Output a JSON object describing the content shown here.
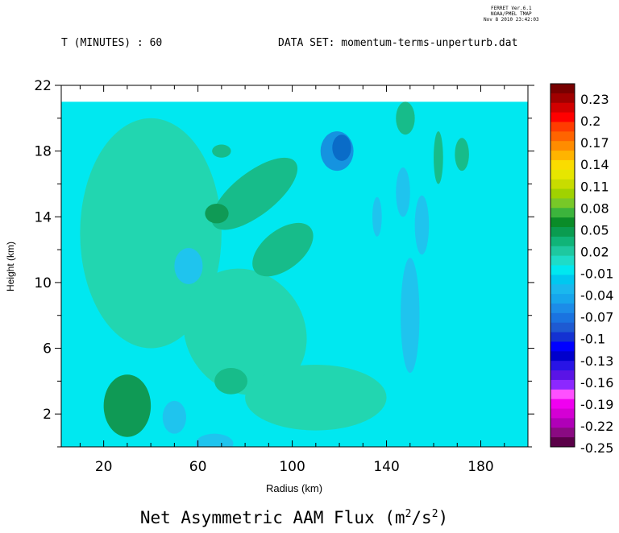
{
  "header": {
    "stamp_line1": "FERRET Ver.6.1",
    "stamp_line2": "NOAA/PMEL TMAP",
    "stamp_line3": "Nov 8 2010 23:42:03",
    "time_label": "T (MINUTES) : 60",
    "dataset_label": "DATA SET: momentum-terms-unperturb.dat"
  },
  "colors": {
    "background_field": "#00e8f0",
    "positive_weak": "#22d6b0",
    "positive_mid": "#17bc8a",
    "positive_strong": "#0f9a55",
    "negative_weak": "#1fc4ee",
    "negative_mid": "#1593e0",
    "negative_strong": "#0a6cc8"
  },
  "chart_data": {
    "type": "heatmap",
    "title": "Net Asymmetric AAM Flux (m",
    "title_units_sup1": "2",
    "title_units_mid": "/s",
    "title_units_sup2": "2",
    "title_units_close": ")",
    "xlabel": "Radius (km)",
    "ylabel": "Height (km)",
    "xlim": [
      2,
      200
    ],
    "ylim": [
      0,
      22
    ],
    "data_top": 21,
    "x_ticks": [
      20,
      60,
      100,
      140,
      180
    ],
    "y_ticks": [
      2,
      6,
      10,
      14,
      18,
      22
    ],
    "colorbar": {
      "levels": [
        -0.25,
        -0.22,
        -0.19,
        -0.16,
        -0.13,
        -0.1,
        -0.07,
        -0.04,
        -0.01,
        0.02,
        0.05,
        0.08,
        0.11,
        0.14,
        0.17,
        0.2,
        0.23
      ],
      "labels": [
        "-0.25",
        "-0.22",
        "-0.19",
        "-0.16",
        "-0.13",
        "-0.1",
        "-0.07",
        "-0.04",
        "-0.01",
        "0.02",
        "0.05",
        "0.08",
        "0.11",
        "0.14",
        "0.17",
        "0.2",
        "0.23"
      ],
      "colors": [
        "#5a0048",
        "#8a0a82",
        "#b000b8",
        "#d400d4",
        "#f000f0",
        "#ff50ff",
        "#8c28ff",
        "#5a14e6",
        "#2814e6",
        "#0000cc",
        "#0000ff",
        "#1432d2",
        "#1e5ad2",
        "#1a73e0",
        "#1c8ce8",
        "#17a6ec",
        "#1ab8ee",
        "#00c8f0",
        "#00e8f0",
        "#1edcc8",
        "#1ec8a0",
        "#10b478",
        "#0a9c50",
        "#0a8c28",
        "#3cb43c",
        "#78c828",
        "#a0d200",
        "#c8dc00",
        "#e6e600",
        "#fadc00",
        "#ffb400",
        "#ff8c00",
        "#ff6400",
        "#ff3c00",
        "#ff0000",
        "#d20000",
        "#a00000",
        "#780000"
      ]
    },
    "features": [
      {
        "x": 30,
        "y": 2.5,
        "rx": 10,
        "ry": 1.9,
        "value": 0.05
      },
      {
        "x": 30,
        "y": 2.4,
        "rx": 6,
        "ry": 1.2,
        "value": 0.02
      },
      {
        "x": 68,
        "y": 14.2,
        "rx": 5,
        "ry": 0.6,
        "value": 0.05
      },
      {
        "x": 74,
        "y": 4.0,
        "rx": 7,
        "ry": 0.8,
        "value": 0.02
      },
      {
        "x": 84,
        "y": 15.4,
        "rx": 22,
        "ry": 1.3,
        "value": 0.02
      },
      {
        "x": 96,
        "y": 12.0,
        "rx": 15,
        "ry": 1.2,
        "value": 0.02
      },
      {
        "x": 70,
        "y": 18.0,
        "rx": 4,
        "ry": 0.4,
        "value": 0.02
      },
      {
        "x": 148,
        "y": 20.0,
        "rx": 4,
        "ry": 1.0,
        "value": 0.02
      },
      {
        "x": 162,
        "y": 17.6,
        "rx": 2,
        "ry": 1.6,
        "value": 0.02
      },
      {
        "x": 172,
        "y": 17.8,
        "rx": 3,
        "ry": 1.0,
        "value": 0.02
      },
      {
        "x": 119,
        "y": 18.0,
        "rx": 7,
        "ry": 1.2,
        "value": -0.04
      },
      {
        "x": 121,
        "y": 18.2,
        "rx": 4,
        "ry": 0.8,
        "value": -0.07
      },
      {
        "x": 56,
        "y": 11.0,
        "rx": 6,
        "ry": 1.1,
        "value": -0.01
      },
      {
        "x": 50,
        "y": 1.8,
        "rx": 5,
        "ry": 1.0,
        "value": -0.01
      },
      {
        "x": 136,
        "y": 14.0,
        "rx": 2,
        "ry": 1.2,
        "value": -0.01
      },
      {
        "x": 147,
        "y": 15.5,
        "rx": 3,
        "ry": 1.5,
        "value": -0.01
      },
      {
        "x": 155,
        "y": 13.5,
        "rx": 3,
        "ry": 1.8,
        "value": -0.01
      },
      {
        "x": 67,
        "y": 0.2,
        "rx": 8,
        "ry": 0.6,
        "value": -0.01
      },
      {
        "x": 150,
        "y": 8.0,
        "rx": 4,
        "ry": 3.5,
        "value": -0.01
      },
      {
        "x": 40,
        "y": 13.0,
        "rx": 30,
        "ry": 7.0,
        "value": 0.005
      },
      {
        "x": 80,
        "y": 7.0,
        "rx": 25,
        "ry": 4.0,
        "value": 0.005
      },
      {
        "x": 110,
        "y": 3.0,
        "rx": 30,
        "ry": 2.0,
        "value": 0.005
      }
    ]
  }
}
